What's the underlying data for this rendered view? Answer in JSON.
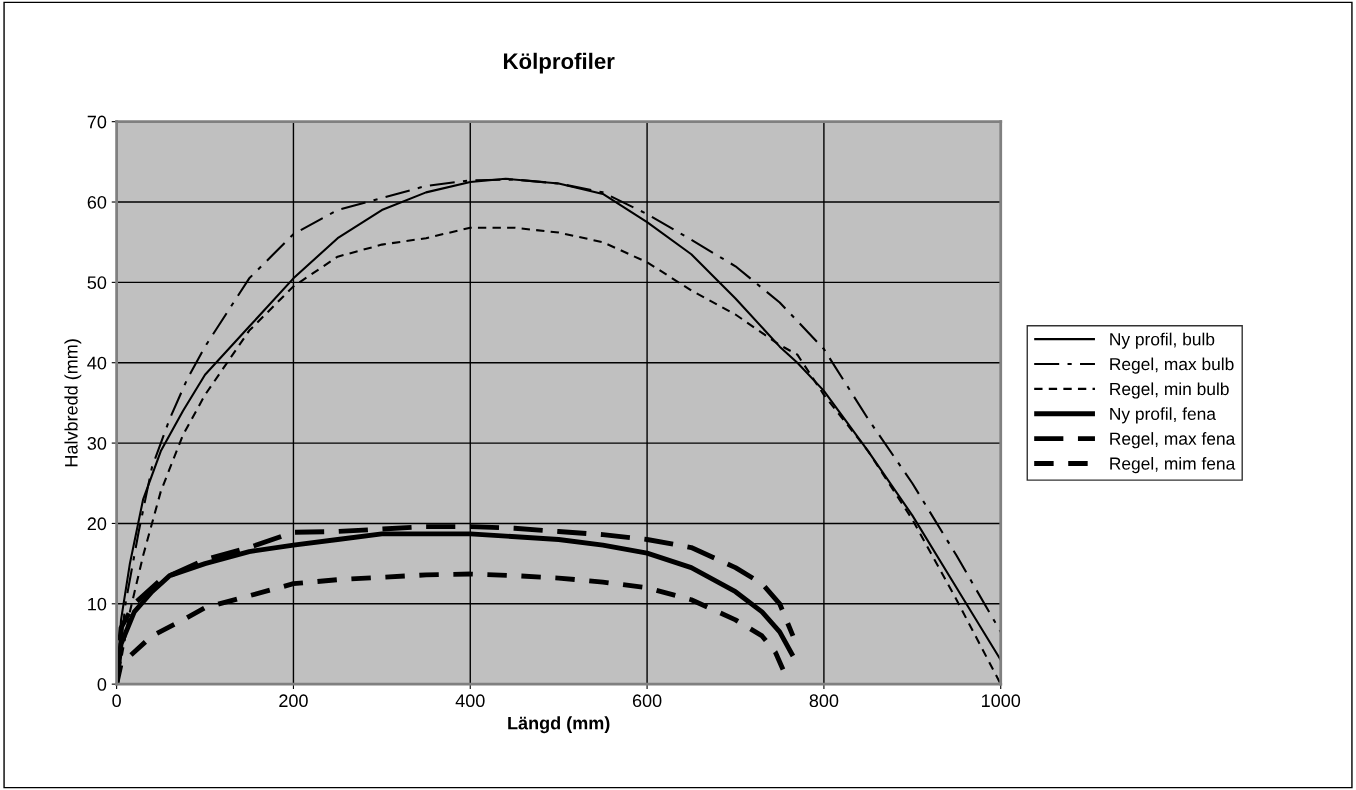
{
  "chart_data": {
    "type": "line",
    "title": "Kölprofiler",
    "xlabel": "Längd (mm)",
    "ylabel": "Halvbredd (mm)",
    "xlim": [
      0,
      1000
    ],
    "xticks": [
      0,
      200,
      400,
      600,
      800,
      1000
    ],
    "ylim": [
      0,
      70
    ],
    "yticks": [
      0,
      10,
      20,
      30,
      40,
      50,
      60,
      70
    ],
    "grid": true,
    "legend": "right",
    "marker": "none",
    "series": [
      {
        "name": "Ny profil, bulb",
        "color": "#000000",
        "line_style": "solid",
        "x": [
          0,
          5,
          15,
          30,
          50,
          75,
          100,
          150,
          200,
          250,
          300,
          350,
          400,
          440,
          500,
          550,
          600,
          650,
          700,
          750,
          770,
          800,
          850,
          900,
          950,
          1000
        ],
        "values": [
          0,
          8,
          15,
          23,
          29,
          34,
          38.5,
          44.5,
          50.5,
          55.5,
          59,
          61.2,
          62.5,
          62.9,
          62.3,
          61,
          57.5,
          53.5,
          48,
          42,
          40,
          36.5,
          29,
          21,
          12,
          3
        ]
      },
      {
        "name": "Regel, max bulb",
        "color": "#000000",
        "line_style": "dashdot",
        "x": [
          0,
          10,
          25,
          40,
          60,
          80,
          100,
          150,
          200,
          250,
          300,
          350,
          400,
          450,
          500,
          550,
          600,
          650,
          700,
          750,
          800,
          850,
          900,
          950,
          1000
        ],
        "values": [
          0,
          10,
          19,
          27,
          33,
          38,
          42,
          50.5,
          56,
          59,
          60.5,
          62,
          62.7,
          62.8,
          62.3,
          61.2,
          58.5,
          55.3,
          52,
          47.5,
          41.7,
          33,
          25,
          16,
          6.5
        ]
      },
      {
        "name": "Regel, min bulb",
        "color": "#000000",
        "line_style": "dashed",
        "x": [
          0,
          15,
          30,
          50,
          75,
          100,
          150,
          200,
          250,
          300,
          350,
          400,
          450,
          500,
          550,
          600,
          650,
          700,
          750,
          770,
          800,
          850,
          900,
          950,
          1000
        ],
        "values": [
          0,
          9,
          16,
          24,
          31,
          36,
          44,
          49.5,
          53.2,
          54.7,
          55.5,
          56.8,
          56.8,
          56.2,
          55,
          52.5,
          49,
          46,
          42.2,
          41,
          36,
          29,
          20.5,
          10.5,
          0
        ]
      },
      {
        "name": "Ny profil, fena",
        "color": "#000000",
        "line_style": "solid",
        "x": [
          0,
          5,
          20,
          40,
          60,
          100,
          150,
          200,
          250,
          300,
          400,
          500,
          550,
          600,
          650,
          700,
          730,
          750,
          765
        ],
        "values": [
          0,
          5,
          9,
          11.5,
          13.5,
          15,
          16.5,
          17.3,
          18,
          18.7,
          18.7,
          18,
          17.3,
          16.3,
          14.5,
          11.5,
          9,
          6.5,
          3.5
        ]
      },
      {
        "name": "Regel, max fena",
        "color": "#000000",
        "line_style": "longdash",
        "x": [
          0,
          5,
          20,
          50,
          100,
          150,
          200,
          250,
          300,
          350,
          400,
          450,
          500,
          550,
          600,
          650,
          700,
          730,
          750,
          765
        ],
        "values": [
          0,
          7,
          10,
          13,
          15.5,
          17,
          18.9,
          19,
          19.3,
          19.6,
          19.6,
          19.4,
          19,
          18.6,
          18,
          17,
          14.5,
          12.5,
          10,
          6
        ]
      },
      {
        "name": "Regel, mim fena",
        "color": "#000000",
        "line_style": "dashed",
        "x": [
          0,
          5,
          20,
          40,
          75,
          100,
          150,
          200,
          250,
          300,
          350,
          400,
          450,
          500,
          550,
          600,
          650,
          700,
          730,
          745,
          755
        ],
        "values": [
          0,
          2.5,
          4,
          6,
          8,
          9.5,
          11,
          12.5,
          13,
          13.3,
          13.6,
          13.7,
          13.5,
          13.2,
          12.7,
          12,
          10.5,
          8,
          6,
          4,
          1.5
        ]
      }
    ]
  }
}
